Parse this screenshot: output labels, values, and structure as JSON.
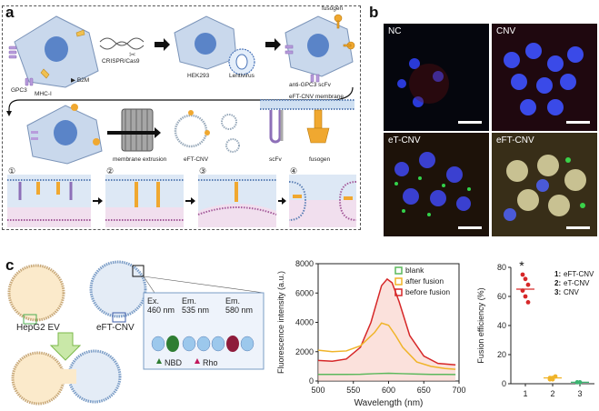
{
  "panel_a": {
    "letter": "a",
    "labels": {
      "gpc3": "GPC3",
      "mhc": "MHC-I",
      "b2m": "B2M",
      "crispr": "CRISPR/Cas9",
      "hek": "HEK293",
      "lentivirus": "Lentivirus",
      "fusogen_top": "fusogen",
      "scfv_top": "anti-GPC3 scFv",
      "extrusion": "membrane extrusion",
      "eftcnv": "eFT-CNV",
      "membrane": "eFT-CNV membrane",
      "scfv": "scFv",
      "fusogen": "fusogen"
    },
    "steps": [
      "①",
      "②",
      "③",
      "④"
    ]
  },
  "panel_b": {
    "letter": "b",
    "images": [
      {
        "title": "NC"
      },
      {
        "title": "CNV"
      },
      {
        "title": "eT-CNV"
      },
      {
        "title": "eFT-CNV"
      }
    ]
  },
  "panel_c": {
    "letter": "c",
    "labels": {
      "hepg2": "HepG2 EV",
      "eftcnv": "eFT-CNV",
      "cell_text": "HepG2",
      "ex": "Ex.",
      "ex_nm": "460 nm",
      "em1": "Em.",
      "em1_nm": "535 nm",
      "em2": "Em.",
      "em2_nm": "580 nm",
      "nbd": "NBD",
      "rho": "Rho"
    }
  },
  "chart_data": [
    {
      "type": "line",
      "xlabel": "Wavelength (nm)",
      "ylabel": "Fluorescence intensity (a.u.)",
      "xlim": [
        500,
        700
      ],
      "ylim": [
        0,
        8000
      ],
      "xticks": [
        500,
        550,
        600,
        650,
        700
      ],
      "yticks": [
        0,
        2000,
        4000,
        6000,
        8000
      ],
      "legend_position": "top-right",
      "series": [
        {
          "name": "blank",
          "color": "#5cb85c",
          "x": [
            500,
            520,
            540,
            560,
            580,
            600,
            620,
            640,
            660,
            680,
            695
          ],
          "y": [
            450,
            450,
            450,
            460,
            500,
            530,
            500,
            470,
            450,
            450,
            440
          ]
        },
        {
          "name": "after fusion",
          "color": "#f0b429",
          "x": [
            500,
            520,
            540,
            560,
            580,
            590,
            600,
            610,
            620,
            640,
            660,
            680,
            695
          ],
          "y": [
            2100,
            2000,
            2050,
            2400,
            3300,
            3950,
            3800,
            3100,
            2300,
            1300,
            1000,
            850,
            800
          ]
        },
        {
          "name": "before fusion",
          "color": "#d62728",
          "x": [
            500,
            520,
            540,
            560,
            575,
            590,
            598,
            605,
            615,
            630,
            650,
            670,
            695
          ],
          "y": [
            1400,
            1350,
            1500,
            2300,
            4000,
            6500,
            6950,
            6700,
            5400,
            3100,
            1700,
            1200,
            1100
          ]
        }
      ]
    },
    {
      "type": "scatter",
      "ylabel": "Fusion efficiency (%)",
      "ylim": [
        0,
        80
      ],
      "yticks": [
        0,
        20,
        40,
        60,
        80
      ],
      "categories": [
        "1",
        "2",
        "3"
      ],
      "annotation": "*",
      "legend_position": "top-right",
      "legend": [
        {
          "num": "1:",
          "name": "eFT-CNV"
        },
        {
          "num": "2:",
          "name": "eT-CNV"
        },
        {
          "num": "3:",
          "name": "CNV"
        }
      ],
      "groups": [
        {
          "category": "1",
          "color": "#d62728",
          "mean": 65,
          "points": [
            75,
            72,
            68,
            64,
            60,
            56
          ]
        },
        {
          "category": "2",
          "color": "#f0b429",
          "mean": 4,
          "points": [
            3,
            4,
            5,
            4,
            3
          ]
        },
        {
          "category": "3",
          "color": "#3cb371",
          "mean": 1,
          "points": [
            1,
            1
          ]
        }
      ]
    }
  ]
}
